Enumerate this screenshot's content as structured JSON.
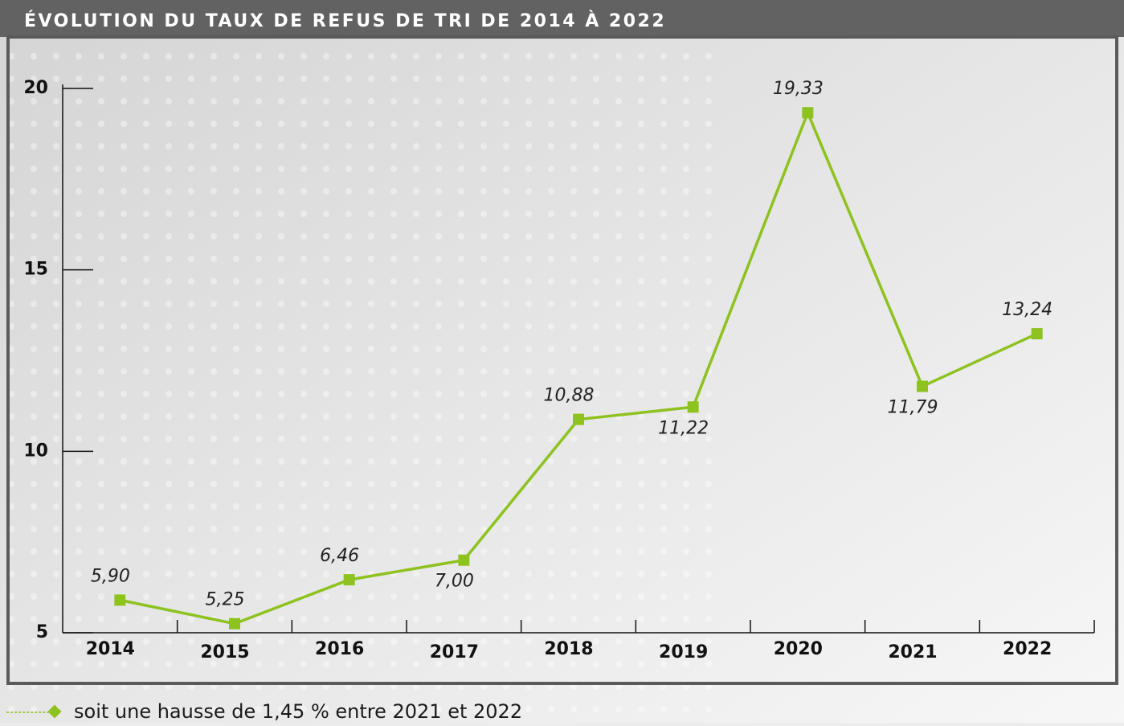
{
  "chart_data": {
    "type": "line",
    "title": "ÉVOLUTION DU TAUX DE REFUS DE TRI DE 2014 À 2022",
    "categories": [
      "2014",
      "2015",
      "2016",
      "2017",
      "2018",
      "2019",
      "2020",
      "2021",
      "2022"
    ],
    "values": [
      5.9,
      5.25,
      6.46,
      7.0,
      10.88,
      11.22,
      19.33,
      11.79,
      13.24
    ],
    "value_labels": [
      "5,90",
      "5,25",
      "6,46",
      "7,00",
      "10,88",
      "11,22",
      "19,33",
      "11,79",
      "13,24"
    ],
    "color": "#8dc21f",
    "ylim": [
      5,
      20
    ],
    "yticks": [
      5,
      10,
      15,
      20
    ],
    "footnote": "soit une hausse de 1,45 % entre 2021 et 2022"
  }
}
